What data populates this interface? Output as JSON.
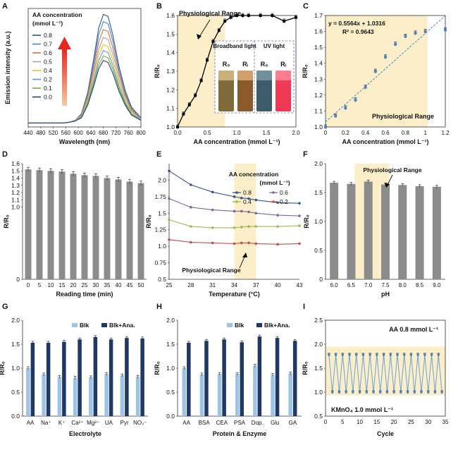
{
  "chart_data": [
    {
      "panel": "A",
      "type": "line",
      "title": "",
      "xlabel": "Wavelength (nm)",
      "ylabel": "Emission intensity (a.u.)",
      "xlim": [
        440,
        800
      ],
      "xticks": [
        "440",
        "480",
        "520",
        "560",
        "600",
        "640",
        "680",
        "720",
        "760",
        "800"
      ],
      "legend_title": "AA concentration",
      "legend_unit": "(mmol L⁻¹)",
      "legend_placement": "top-left",
      "x": [
        440,
        480,
        520,
        550,
        570,
        590,
        610,
        630,
        650,
        665,
        680,
        695,
        710,
        730,
        750,
        770,
        800
      ],
      "series": [
        {
          "name": "0.8",
          "color": "#2e5597",
          "values": [
            6,
            6,
            6,
            6,
            7,
            10,
            20,
            52,
            105,
            150,
            171,
            168,
            140,
            92,
            55,
            30,
            14
          ]
        },
        {
          "name": "0.7",
          "color": "#4a86c8",
          "values": [
            6,
            6,
            6,
            6,
            7,
            10,
            19,
            49,
            98,
            140,
            160,
            157,
            131,
            86,
            51,
            28,
            13
          ]
        },
        {
          "name": "0.6",
          "color": "#e06b3b",
          "values": [
            6,
            6,
            6,
            6,
            7,
            10,
            18,
            46,
            91,
            129,
            148,
            145,
            121,
            80,
            48,
            26,
            12
          ]
        },
        {
          "name": "0.5",
          "color": "#a5a5a5",
          "values": [
            6,
            6,
            6,
            6,
            7,
            10,
            17,
            43,
            84,
            118,
            136,
            133,
            111,
            73,
            44,
            24,
            12
          ]
        },
        {
          "name": "0.4",
          "color": "#f2c018",
          "values": [
            6,
            6,
            6,
            6,
            7,
            9,
            16,
            40,
            78,
            109,
            125,
            122,
            102,
            67,
            40,
            22,
            11
          ]
        },
        {
          "name": "0.2",
          "color": "#5b9bd5",
          "values": [
            6,
            6,
            6,
            6,
            7,
            9,
            15,
            37,
            72,
            101,
            116,
            113,
            94,
            62,
            37,
            20,
            11
          ]
        },
        {
          "name": "0.1",
          "color": "#70ad47",
          "values": [
            6,
            6,
            6,
            6,
            7,
            9,
            14,
            35,
            67,
            94,
            108,
            105,
            88,
            58,
            35,
            19,
            10
          ]
        },
        {
          "name": "0.0",
          "color": "#264478",
          "values": [
            6,
            6,
            6,
            6,
            7,
            9,
            14,
            33,
            63,
            88,
            101,
            98,
            82,
            54,
            33,
            18,
            10
          ]
        }
      ]
    },
    {
      "panel": "B",
      "type": "line",
      "xlabel": "AA concentration (mmol L⁻¹)",
      "ylabel": "R/R₀",
      "xlim": [
        0,
        2.0
      ],
      "ylim": [
        1.0,
        1.6
      ],
      "annotation": "Physiological Range",
      "shaded_range": [
        0,
        0.8
      ],
      "x": [
        0,
        0.1,
        0.2,
        0.3,
        0.4,
        0.5,
        0.6,
        0.7,
        0.8,
        0.9,
        1.0,
        1.1,
        1.2,
        1.4,
        1.6,
        1.8,
        2.0
      ],
      "values": [
        1.0,
        1.07,
        1.12,
        1.17,
        1.25,
        1.36,
        1.46,
        1.52,
        1.57,
        1.59,
        1.6,
        1.6,
        1.6,
        1.6,
        1.6,
        1.57,
        1.59
      ],
      "inset": {
        "labels": [
          "Broadband light",
          "UV light"
        ],
        "samples": [
          "R₀",
          "Rᵢ",
          "R₀",
          "Rᵢ"
        ]
      }
    },
    {
      "panel": "C",
      "type": "scatter",
      "xlabel": "AA concentration (mmol L⁻¹)",
      "ylabel": "R/R₀",
      "xlim": [
        0,
        1.2
      ],
      "ylim": [
        1.0,
        1.7
      ],
      "equation": "y = 0.5564x + 1.0316",
      "r2": "R² = 0.9643",
      "annotation": "Physiological Range",
      "shaded_range": [
        0,
        1.0
      ],
      "x": [
        0,
        0.1,
        0.2,
        0.3,
        0.4,
        0.5,
        0.6,
        0.7,
        0.8,
        0.9,
        1.0,
        1.2
      ],
      "values": [
        1.0,
        1.07,
        1.12,
        1.17,
        1.25,
        1.35,
        1.44,
        1.52,
        1.57,
        1.59,
        1.6,
        1.61
      ]
    },
    {
      "panel": "D",
      "type": "bar",
      "xlabel": "Reading time (min)",
      "ylabel": "R/R₀",
      "ylim": [
        0,
        1.6
      ],
      "categories": [
        "0",
        "5",
        "10",
        "15",
        "20",
        "25",
        "30",
        "35",
        "40",
        "45",
        "50"
      ],
      "values": [
        1.52,
        1.51,
        1.5,
        1.49,
        1.46,
        1.44,
        1.43,
        1.4,
        1.38,
        1.35,
        1.33
      ]
    },
    {
      "panel": "E",
      "type": "line",
      "xlabel": "Temperature (°C)",
      "ylabel": "R/R₀",
      "ylim": [
        0.5,
        2.25
      ],
      "xticks": [
        "25",
        "28",
        "31",
        "34",
        "37",
        "40",
        "43"
      ],
      "annotation": "Physiological Range",
      "shaded_range": [
        35,
        37
      ],
      "legend_title": "AA concentration",
      "legend_unit": "(mmol L⁻¹)",
      "x": [
        25,
        28,
        31,
        34,
        35,
        36,
        37,
        40,
        43
      ],
      "series": [
        {
          "name": "0.8",
          "color": "#2e5597",
          "values": [
            2.14,
            1.93,
            1.82,
            1.75,
            1.73,
            1.72,
            1.7,
            1.66,
            1.65
          ]
        },
        {
          "name": "0.6",
          "color": "#8064a2",
          "values": [
            1.72,
            1.59,
            1.55,
            1.53,
            1.53,
            1.52,
            1.5,
            1.47,
            1.46
          ]
        },
        {
          "name": "0.4",
          "color": "#9bbb59",
          "values": [
            1.4,
            1.3,
            1.28,
            1.28,
            1.29,
            1.3,
            1.3,
            1.3,
            1.31
          ]
        },
        {
          "name": "0.2",
          "color": "#c0504d",
          "values": [
            1.1,
            1.06,
            1.05,
            1.04,
            1.05,
            1.05,
            1.04,
            1.03,
            1.04
          ]
        }
      ]
    },
    {
      "panel": "F",
      "type": "bar",
      "xlabel": "pH",
      "ylabel": "R/R₀",
      "ylim": [
        0,
        2.0
      ],
      "annotation": "Physiological Range",
      "shaded_range": [
        6.5,
        7.5
      ],
      "categories": [
        "6.0",
        "6.5",
        "7.0",
        "7.5",
        "8.0",
        "8.5",
        "9.0"
      ],
      "values": [
        1.67,
        1.65,
        1.69,
        1.64,
        1.63,
        1.61,
        1.6
      ]
    },
    {
      "panel": "G",
      "type": "bar",
      "xlabel": "Electrolyte",
      "ylabel": "R/R₀",
      "ylim": [
        0,
        2.0
      ],
      "categories": [
        "AA",
        "Na⁺",
        "K⁺",
        "Ca²⁺",
        "Mg²⁺",
        "UA",
        "Pyr",
        "NO₃⁻"
      ],
      "series": [
        {
          "name": "Blk",
          "color": "#9dc3e6",
          "values": [
            1.0,
            0.87,
            0.82,
            0.8,
            0.81,
            0.88,
            0.85,
            0.82
          ]
        },
        {
          "name": "Blk+Ana.",
          "color": "#1f3864",
          "values": [
            1.53,
            1.53,
            1.55,
            1.6,
            1.65,
            1.6,
            1.63,
            1.62
          ]
        }
      ]
    },
    {
      "panel": "H",
      "type": "bar",
      "xlabel": "Protein & Enzyme",
      "ylabel": "R/R₀",
      "ylim": [
        0,
        2.0
      ],
      "categories": [
        "AA",
        "BSA",
        "CEA",
        "PSA",
        "Dop.",
        "Glu",
        "GA"
      ],
      "series": [
        {
          "name": "Blk",
          "color": "#9dc3e6",
          "values": [
            1.0,
            0.87,
            0.88,
            0.88,
            1.05,
            0.86,
            0.89
          ]
        },
        {
          "name": "Blk+Ana.",
          "color": "#1f3864",
          "values": [
            1.53,
            1.57,
            1.6,
            1.54,
            1.66,
            1.63,
            1.57
          ]
        }
      ]
    },
    {
      "panel": "I",
      "type": "line",
      "xlabel": "Cycle",
      "ylabel": "R/R₀",
      "xlim": [
        0,
        35
      ],
      "ylim": [
        0.5,
        2.5
      ],
      "xticks": [
        "0",
        "5",
        "10",
        "15",
        "20",
        "25",
        "30",
        "35"
      ],
      "annotation_top": "AA 0.8 mmol L⁻¹",
      "annotation_bottom": "KMnO₄ 1.0 mmol L⁻¹",
      "high": 1.78,
      "low": 1.0,
      "cycles": 34
    }
  ],
  "labels": {
    "panel_letters": [
      "A",
      "B",
      "C",
      "D",
      "E",
      "F",
      "G",
      "H",
      "I"
    ],
    "axis_ticks": {
      "a_y": [],
      "b_y": [
        "1.0",
        "1.1",
        "1.2",
        "1.3",
        "1.4",
        "1.5",
        "1.6"
      ],
      "b_x": [
        "0.0",
        "0.5",
        "1.0",
        "1.5",
        "2.0"
      ],
      "c_y": [
        "1.0",
        "1.1",
        "1.2",
        "1.3",
        "1.4",
        "1.5",
        "1.6",
        "1.7"
      ],
      "c_x": [
        "0",
        "0.2",
        "0.4",
        "0.6",
        "0.8",
        "1",
        "1.2"
      ],
      "d_y": [
        "0",
        "0.1",
        "0.2",
        "0.3",
        "0.4",
        "0.5",
        "0.6",
        "0.7",
        "0.8",
        "0.9",
        "1.0",
        "1.1",
        "1.2",
        "1.3",
        "1.4",
        "1.5",
        "1.6"
      ],
      "e_y": [
        "0.5",
        "0.75",
        "1.0",
        "1.25",
        "1.5",
        "1.75",
        "2.0"
      ],
      "f_y": [
        "0",
        "0.5",
        "1.0",
        "1.5",
        "2.0"
      ],
      "g_y": [
        "0.0",
        "0.5",
        "1.0",
        "1.5",
        "2.0"
      ],
      "i_y": [
        "0.5",
        "1.0",
        "1.5",
        "2.0",
        "2.5"
      ]
    }
  }
}
